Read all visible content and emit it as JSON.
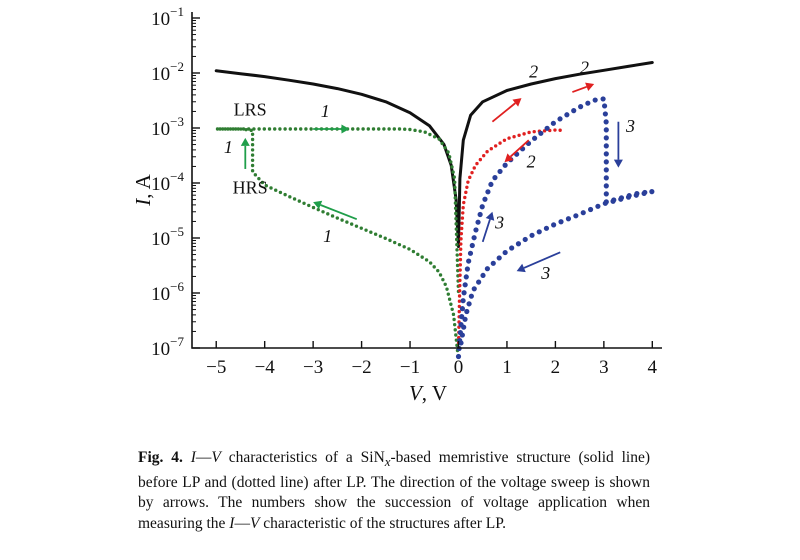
{
  "chart_data": {
    "type": "line",
    "yscale": "log",
    "xlim": [
      -5.5,
      4.2
    ],
    "ylim": [
      1e-07,
      0.1
    ],
    "x_ticks": [
      -5,
      -4,
      -3,
      -2,
      -1,
      0,
      1,
      2,
      3,
      4
    ],
    "x_tick_labels": [
      "−5",
      "−4",
      "−3",
      "−2",
      "−1",
      "0",
      "1",
      "2",
      "3",
      "4"
    ],
    "y_ticks": [
      1e-07,
      1e-06,
      1e-05,
      0.0001,
      0.001,
      0.01,
      0.1
    ],
    "y_tick_labels": [
      {
        "base": "10",
        "exp": "−7"
      },
      {
        "base": "10",
        "exp": "−6"
      },
      {
        "base": "10",
        "exp": "−5"
      },
      {
        "base": "10",
        "exp": "−4"
      },
      {
        "base": "10",
        "exp": "−3"
      },
      {
        "base": "10",
        "exp": "−2"
      },
      {
        "base": "10",
        "exp": "−1"
      }
    ],
    "xlabel": {
      "var": "V",
      "unit": ", V"
    },
    "ylabel": {
      "var": "I",
      "unit": ", A"
    },
    "grid": false,
    "series": [
      {
        "style": "solid",
        "color": "#111111",
        "points": [
          [
            -5.0,
            0.011
          ],
          [
            -4.5,
            0.0097
          ],
          [
            -4.0,
            0.0086
          ],
          [
            -3.5,
            0.0074
          ],
          [
            -3.0,
            0.0063
          ],
          [
            -2.5,
            0.0052
          ],
          [
            -2.0,
            0.0041
          ],
          [
            -1.5,
            0.003
          ],
          [
            -1.0,
            0.0019
          ],
          [
            -0.6,
            0.0011
          ],
          [
            -0.3,
            0.0005
          ],
          [
            -0.15,
            0.00021
          ],
          [
            -0.05,
            5e-05
          ],
          [
            0.0,
            7e-06
          ],
          [
            0.03,
            0.00012
          ],
          [
            0.1,
            0.0006
          ],
          [
            0.25,
            0.0017
          ],
          [
            0.5,
            0.003
          ],
          [
            1.0,
            0.0048
          ],
          [
            1.5,
            0.0063
          ],
          [
            2.0,
            0.0079
          ],
          [
            2.5,
            0.0095
          ],
          [
            3.0,
            0.0112
          ],
          [
            3.5,
            0.0132
          ],
          [
            4.0,
            0.0155
          ]
        ]
      },
      {
        "style": "dotted",
        "color": "#2f7d32",
        "points": [
          [
            -0.02,
            9e-08
          ],
          [
            -0.1,
            4e-07
          ],
          [
            -0.25,
            1.3e-06
          ],
          [
            -0.4,
            2.4e-06
          ],
          [
            -0.6,
            3.7e-06
          ],
          [
            -1.0,
            6.2e-06
          ],
          [
            -1.5,
            9.8e-06
          ],
          [
            -2.0,
            1.5e-05
          ],
          [
            -2.5,
            2.3e-05
          ],
          [
            -3.0,
            3.6e-05
          ],
          [
            -3.5,
            5.7e-05
          ],
          [
            -4.0,
            9.2e-05
          ],
          [
            -4.25,
            0.00016
          ],
          [
            -4.25,
            0.0002
          ],
          [
            -4.25,
            0.0003
          ],
          [
            -4.25,
            0.0005
          ],
          [
            -4.25,
            0.0009
          ],
          [
            -4.5,
            0.00096
          ],
          [
            -5.0,
            0.00096
          ],
          [
            -4.25,
            0.00096
          ],
          [
            -3.0,
            0.00096
          ],
          [
            -2.0,
            0.00096
          ],
          [
            -1.2,
            0.00096
          ],
          [
            -1.0,
            0.00094
          ],
          [
            -0.7,
            0.00085
          ],
          [
            -0.4,
            0.00063
          ],
          [
            -0.2,
            0.00035
          ],
          [
            -0.08,
            0.00012
          ],
          [
            0.0,
            1e-06
          ]
        ]
      },
      {
        "style": "dotted",
        "color": "#e02020",
        "points": [
          [
            0.0,
            1e-07
          ],
          [
            0.02,
            8e-07
          ],
          [
            0.05,
            9e-06
          ],
          [
            0.1,
            4e-05
          ],
          [
            0.2,
            0.00011
          ],
          [
            0.35,
            0.00021
          ],
          [
            0.6,
            0.00038
          ],
          [
            1.0,
            0.00064
          ],
          [
            1.5,
            0.00085
          ],
          [
            2.0,
            0.00092
          ],
          [
            2.2,
            0.0009
          ]
        ]
      },
      {
        "style": "dotted",
        "color": "#2a3f9a",
        "points": [
          [
            0.0,
            7e-08
          ],
          [
            0.05,
            2.5e-07
          ],
          [
            0.1,
            8e-07
          ],
          [
            0.2,
            3.5e-06
          ],
          [
            0.35,
            1.3e-05
          ],
          [
            0.5,
            4e-05
          ],
          [
            0.7,
            0.00011
          ],
          [
            1.0,
            0.00023
          ],
          [
            1.5,
            0.00058
          ],
          [
            2.0,
            0.0013
          ],
          [
            2.5,
            0.0024
          ],
          [
            2.8,
            0.0032
          ],
          [
            3.0,
            0.0034
          ],
          [
            3.05,
            0.0012
          ],
          [
            3.05,
            0.00045
          ],
          [
            3.05,
            0.00018
          ],
          [
            3.05,
            8e-05
          ],
          [
            3.05,
            4.5e-05
          ],
          [
            3.4,
            5.5e-05
          ],
          [
            3.7,
            6.5e-05
          ],
          [
            4.0,
            7e-05
          ],
          [
            3.6,
            5.8e-05
          ],
          [
            3.0,
            4.2e-05
          ],
          [
            2.5,
            2.7e-05
          ],
          [
            2.0,
            1.8e-05
          ],
          [
            1.5,
            1.1e-05
          ],
          [
            1.0,
            5.8e-06
          ],
          [
            0.6,
            2.8e-06
          ],
          [
            0.3,
            1.1e-06
          ],
          [
            0.15,
            4e-07
          ],
          [
            0.05,
            1.2e-07
          ]
        ]
      }
    ],
    "annotations": [
      {
        "kind": "text",
        "text": "LRS",
        "x": -4.3,
        "y": 0.0017
      },
      {
        "kind": "text",
        "text": "HRS",
        "x": -4.3,
        "y": 6.5e-05
      },
      {
        "kind": "num",
        "text": "1",
        "x": -2.75,
        "y": 0.0016
      },
      {
        "kind": "num",
        "text": "1",
        "x": -4.75,
        "y": 0.00035
      },
      {
        "kind": "num",
        "text": "1",
        "x": -2.7,
        "y": 8.5e-06
      },
      {
        "kind": "num",
        "text": "2",
        "x": 1.55,
        "y": 0.0082
      },
      {
        "kind": "num",
        "text": "2",
        "x": 2.6,
        "y": 0.0098
      },
      {
        "kind": "num",
        "text": "2",
        "x": 1.5,
        "y": 0.00019
      },
      {
        "kind": "num",
        "text": "3",
        "x": 3.55,
        "y": 0.00085
      },
      {
        "kind": "num",
        "text": "3",
        "x": 0.85,
        "y": 1.5e-05
      },
      {
        "kind": "num",
        "text": "3",
        "x": 1.8,
        "y": 1.8e-06
      }
    ],
    "arrows": [
      {
        "color": "#1f9e4a",
        "from": [
          -3.0,
          0.00096
        ],
        "to": [
          -2.25,
          0.00096
        ]
      },
      {
        "color": "#1f9e4a",
        "from": [
          -4.4,
          0.00018
        ],
        "to": [
          -4.4,
          0.00066
        ]
      },
      {
        "color": "#1f9e4a",
        "from": [
          -2.1,
          2.2e-05
        ],
        "to": [
          -3.0,
          4.5e-05
        ]
      },
      {
        "color": "#e02020",
        "from": [
          0.7,
          0.0013
        ],
        "to": [
          1.3,
          0.0035
        ]
      },
      {
        "color": "#e02020",
        "from": [
          2.35,
          0.0045
        ],
        "to": [
          2.8,
          0.0063
        ]
      },
      {
        "color": "#e02020",
        "from": [
          1.45,
          0.0006
        ],
        "to": [
          0.95,
          0.00024
        ]
      },
      {
        "color": "#2a3f9a",
        "from": [
          0.5,
          8.5e-06
        ],
        "to": [
          0.7,
          3e-05
        ]
      },
      {
        "color": "#2a3f9a",
        "from": [
          3.3,
          0.0013
        ],
        "to": [
          3.3,
          0.00019
        ]
      },
      {
        "color": "#2a3f9a",
        "from": [
          2.1,
          5.5e-06
        ],
        "to": [
          1.2,
          2.5e-06
        ]
      }
    ]
  },
  "caption": {
    "fig_label": "Fig. 4.",
    "sentence1_var1": "I",
    "sentence1_dash": "—",
    "sentence1_var2": "V",
    "sentence1_text": " characteristics of a SiN",
    "sentence1_sub": "x",
    "sentence1_rest": "-based memristive structure (solid line) before LP and (dotted line) after LP. The direction of the voltage sweep is shown by arrows. The numbers show the succession of voltage application when measuring the ",
    "sentence2_var1": "I",
    "sentence2_dash": "—",
    "sentence2_var2": "V",
    "sentence2_rest": " characteristic of the structures after LP."
  }
}
